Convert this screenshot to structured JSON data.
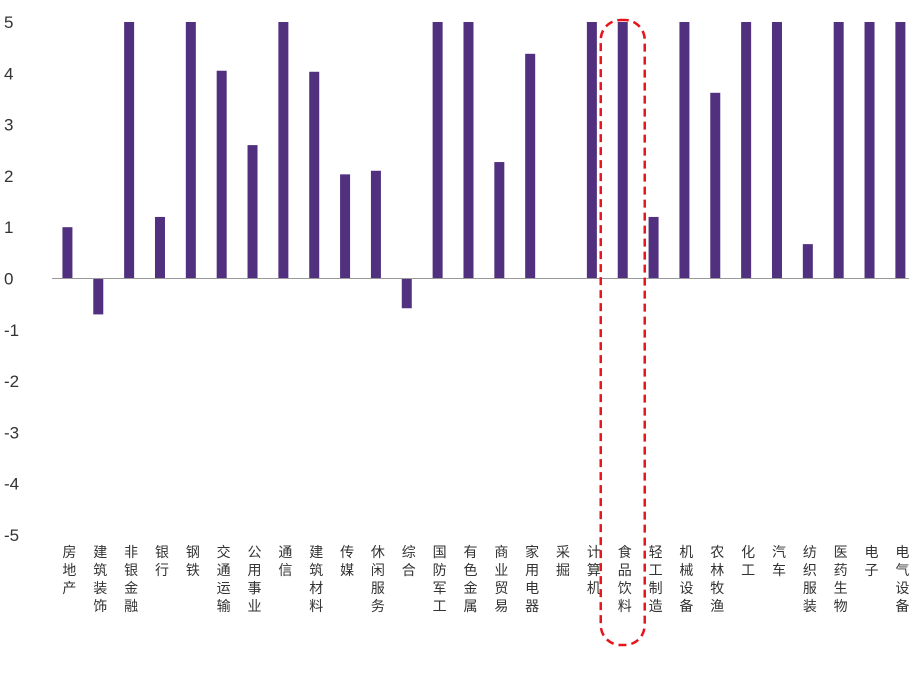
{
  "chart_data": {
    "type": "bar",
    "title": "",
    "xlabel": "",
    "ylabel": "",
    "ylim": [
      -5,
      5
    ],
    "yticks": [
      "5",
      "4",
      "3",
      "2",
      "1",
      "0",
      "-1",
      "-2",
      "-3",
      "-4",
      "-5"
    ],
    "grid": false,
    "legend": "none",
    "categories": [
      "房地产",
      "建筑装饰",
      "非银金融",
      "银行",
      "钢铁",
      "交通运输",
      "公用事业",
      "通信",
      "建筑材料",
      "传媒",
      "休闲服务",
      "综合",
      "国防军工",
      "有色金属",
      "商业贸易",
      "家用电器",
      "采掘",
      "计算机",
      "食品饮料",
      "轻工制造",
      "机械设备",
      "农林牧渔",
      "化工",
      "汽车",
      "纺织服装",
      "医药生物",
      "电子",
      "电气设备"
    ],
    "values": [
      1.0,
      -0.7,
      5.0,
      1.2,
      5.0,
      4.05,
      2.6,
      5.0,
      4.03,
      2.03,
      2.1,
      -0.58,
      5.0,
      5.0,
      2.27,
      4.38,
      0.0,
      5.0,
      5.0,
      1.2,
      5.0,
      3.62,
      5.0,
      5.0,
      0.67,
      5.0,
      5.0,
      5.0
    ],
    "highlight": "食品饮料",
    "colors": {
      "bar": "#50307f",
      "highlight_outline": "#e8141c",
      "axis": "#999999",
      "text": "#333333"
    }
  }
}
